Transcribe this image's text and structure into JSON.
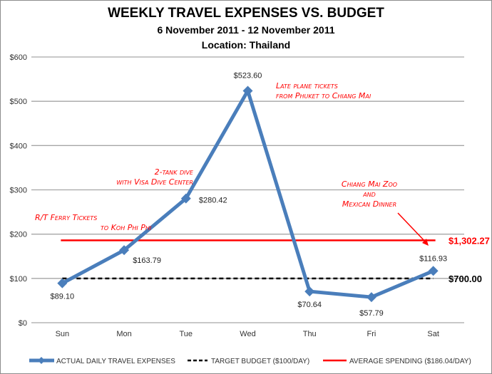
{
  "chart_data": {
    "type": "line",
    "title": "WEEKLY TRAVEL EXPENSES VS. BUDGET",
    "subtitle": "6 November 2011 - 12 November 2011",
    "location": "Location: Thailand",
    "xlabel": "",
    "ylabel": "",
    "categories": [
      "Sun",
      "Mon",
      "Tue",
      "Wed",
      "Thu",
      "Fri",
      "Sat"
    ],
    "ylim": [
      0,
      600
    ],
    "yticks": [
      0,
      100,
      200,
      300,
      400,
      500,
      600
    ],
    "ytick_labels": [
      "$0",
      "$100",
      "$200",
      "$300",
      "$400",
      "$500",
      "$600"
    ],
    "grid": true,
    "legend_position": "bottom",
    "series": [
      {
        "name": "ACTUAL DAILY TRAVEL EXPENSES",
        "color": "#4a7ebb",
        "style": "solid-diamond",
        "values": [
          89.1,
          163.79,
          280.42,
          523.6,
          70.64,
          57.79,
          116.93
        ],
        "labels": [
          "$89.10",
          "$163.79",
          "$280.42",
          "$523.60",
          "$70.64",
          "$57.79",
          "$116.93"
        ]
      },
      {
        "name": "TARGET BUDGET ($100/DAY)",
        "color": "#000000",
        "style": "dashed",
        "values": [
          100,
          100,
          100,
          100,
          100,
          100,
          100
        ],
        "end_label": "$700.00"
      },
      {
        "name": "AVERAGE SPENDING ($186.04/DAY)",
        "color": "#ff0000",
        "style": "solid",
        "values": [
          186.04,
          186.04,
          186.04,
          186.04,
          186.04,
          186.04,
          186.04
        ],
        "end_label": "$1,302.27"
      }
    ],
    "annotations": [
      {
        "lines": [
          "R/T Ferry Tickets",
          "to Koh Phi Phi"
        ],
        "near": "Sun"
      },
      {
        "lines": [
          "2-tank dive",
          "with Visa Dive Center"
        ],
        "near": "Tue"
      },
      {
        "lines": [
          "Late plane tickets",
          "from Phuket to Chiang Mai"
        ],
        "near": "Wed"
      },
      {
        "lines": [
          "Chiang Mai Zoo",
          "and",
          "Mexican Dinner"
        ],
        "near": "Sat"
      }
    ]
  }
}
